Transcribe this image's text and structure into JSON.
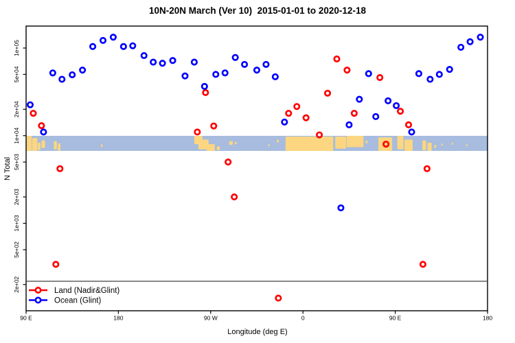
{
  "chart_data": {
    "type": "scatter",
    "title": "10N-20N March (Ver 10)  2015-01-01 to 2020-12-18",
    "xlabel": "Longitude (deg E)",
    "ylabel": "N Total",
    "x_axis": {
      "note": "longitude axis starts at 90E and wraps eastward 450 degrees",
      "range_deg": [
        90,
        540
      ],
      "ticks": [
        {
          "label": "90 E",
          "deg": 90
        },
        {
          "label": "180",
          "deg": 180
        },
        {
          "label": "90 W",
          "deg": 270
        },
        {
          "label": "0",
          "deg": 360
        },
        {
          "label": "90 E",
          "deg": 450
        },
        {
          "label": "180",
          "deg": 540
        }
      ]
    },
    "y_axis": {
      "scale": "log10",
      "ticks": [
        {
          "label": "1e+05",
          "value": 100000
        },
        {
          "label": "5e+04",
          "value": 50000
        },
        {
          "label": "2e+04",
          "value": 20000
        },
        {
          "label": "1e+04",
          "value": 10000
        },
        {
          "label": "5e+03",
          "value": 5000
        },
        {
          "label": "2e+03",
          "value": 2000
        },
        {
          "label": "1e+03",
          "value": 1000
        },
        {
          "label": "5e+02",
          "value": 500
        },
        {
          "label": "2e+02",
          "value": 200
        }
      ]
    },
    "legend": {
      "position": "bottom-left",
      "separator_line": true
    },
    "series": [
      {
        "name": "Land (Nadir&Glint)",
        "color": "#ff0000",
        "marker": "open-circle",
        "points": [
          [
            97,
            18000
          ],
          [
            105,
            13000
          ],
          [
            123,
            4200
          ],
          [
            119,
            340
          ],
          [
            257,
            11000
          ],
          [
            265,
            31000
          ],
          [
            273,
            12900
          ],
          [
            287,
            5000
          ],
          [
            293,
            2000
          ],
          [
            336,
            140
          ],
          [
            346,
            18000
          ],
          [
            354,
            21500
          ],
          [
            363,
            16000
          ],
          [
            376,
            10200
          ],
          [
            384,
            30500
          ],
          [
            393,
            75000
          ],
          [
            403,
            56000
          ],
          [
            410,
            18000
          ],
          [
            435,
            46000
          ],
          [
            441,
            8000
          ],
          [
            455,
            19000
          ],
          [
            463,
            13300
          ],
          [
            477,
            340
          ],
          [
            481,
            4200
          ]
        ]
      },
      {
        "name": "Ocean (Glint)",
        "color": "#0000ff",
        "marker": "open-circle",
        "points": [
          [
            94,
            22500
          ],
          [
            107,
            11000
          ],
          [
            116,
            52000
          ],
          [
            125,
            44000
          ],
          [
            135,
            49500
          ],
          [
            145,
            56000
          ],
          [
            155,
            104000
          ],
          [
            165,
            122000
          ],
          [
            175,
            133000
          ],
          [
            185,
            104000
          ],
          [
            194,
            106000
          ],
          [
            205,
            82000
          ],
          [
            214,
            69000
          ],
          [
            223,
            67000
          ],
          [
            233,
            72000
          ],
          [
            245,
            48000
          ],
          [
            254,
            69000
          ],
          [
            264,
            36500
          ],
          [
            275,
            50000
          ],
          [
            284,
            52000
          ],
          [
            294,
            78000
          ],
          [
            303,
            65000
          ],
          [
            315,
            56000
          ],
          [
            324,
            65000
          ],
          [
            333,
            47000
          ],
          [
            342,
            14300
          ],
          [
            397,
            1500
          ],
          [
            405,
            13300
          ],
          [
            415,
            26000
          ],
          [
            424,
            51000
          ],
          [
            431,
            16500
          ],
          [
            443,
            25000
          ],
          [
            451,
            22000
          ],
          [
            466,
            11000
          ],
          [
            473,
            51000
          ],
          [
            484,
            44000
          ],
          [
            493,
            50000
          ],
          [
            503,
            57000
          ],
          [
            514,
            102000
          ],
          [
            523,
            118000
          ],
          [
            533,
            133000
          ]
        ]
      }
    ],
    "map_band": {
      "description": "10N-20N latitude world-map strip drawn across plot near 1e+04",
      "ocean_color": "#a7bcde",
      "land_color": "#fcd680",
      "top_value": 10000,
      "land_patches_deg": [
        [
          90.3,
          95.5,
          0.0,
          1.0
        ],
        [
          96,
          101,
          0.15,
          1.0
        ],
        [
          101.5,
          104,
          0.45,
          0.95
        ],
        [
          105,
          108.5,
          0.3,
          0.8
        ],
        [
          117,
          120,
          0.35,
          0.9
        ],
        [
          121,
          123.5,
          0.5,
          1.0
        ],
        [
          163,
          164.5,
          0.55,
          0.75
        ],
        [
          254,
          262,
          0.0,
          0.55
        ],
        [
          258,
          268,
          0.25,
          0.9
        ],
        [
          266,
          274,
          0.55,
          1.0
        ],
        [
          276,
          279,
          0.7,
          0.95
        ],
        [
          288,
          291.5,
          0.35,
          0.6
        ],
        [
          293.5,
          295.5,
          0.4,
          0.55
        ],
        [
          326,
          327.5,
          0.55,
          0.7
        ],
        [
          334.5,
          336.5,
          0.25,
          0.45
        ],
        [
          343,
          389.5,
          0.05,
          1.0
        ],
        [
          391.5,
          402,
          0.05,
          0.85
        ],
        [
          402.5,
          419,
          0.0,
          0.75
        ],
        [
          421,
          423,
          0.3,
          0.5
        ],
        [
          433.5,
          447,
          0.1,
          1.0
        ],
        [
          452,
          458,
          0.0,
          0.9
        ],
        [
          459,
          467,
          0.25,
          1.0
        ],
        [
          476.5,
          480,
          0.3,
          0.95
        ],
        [
          481.5,
          485.5,
          0.45,
          1.0
        ],
        [
          488,
          490,
          0.6,
          0.8
        ],
        [
          495,
          496.5,
          0.5,
          0.65
        ],
        [
          505,
          506.5,
          0.45,
          0.6
        ],
        [
          519,
          520.5,
          0.55,
          0.7
        ]
      ]
    }
  }
}
